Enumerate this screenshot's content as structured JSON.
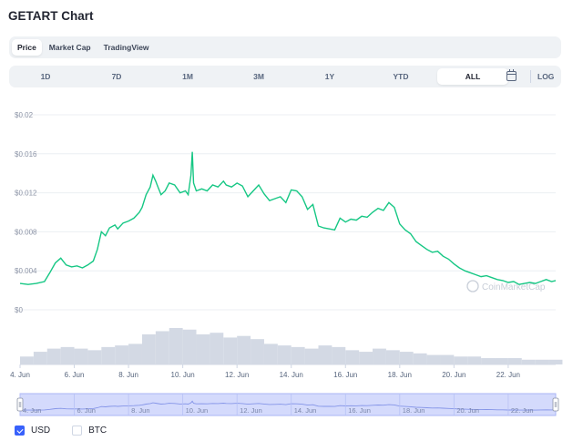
{
  "title": "GETART Chart",
  "type_tabs": [
    {
      "label": "Price",
      "active": true
    },
    {
      "label": "Market Cap",
      "active": false
    },
    {
      "label": "TradingView",
      "active": false
    }
  ],
  "ranges": [
    {
      "label": "1D",
      "active": false
    },
    {
      "label": "7D",
      "active": false
    },
    {
      "label": "1M",
      "active": false
    },
    {
      "label": "3M",
      "active": false
    },
    {
      "label": "1Y",
      "active": false
    },
    {
      "label": "YTD",
      "active": false
    },
    {
      "label": "ALL",
      "active": true
    }
  ],
  "log_label": "LOG",
  "calendar_icon": "calendar-icon",
  "watermark": "CoinMarketCap",
  "colors": {
    "line": "#16c784",
    "volume": "#cfd6e4",
    "navigator_fill": "#c5cdfb",
    "checkbox": "#3861fb"
  },
  "legend": [
    {
      "label": "USD",
      "checked": true
    },
    {
      "label": "BTC",
      "checked": false
    }
  ],
  "chart_data": {
    "type": "line",
    "title": "",
    "xlabel": "",
    "ylabel": "",
    "x_ticks": [
      "4. Jun",
      "6. Jun",
      "8. Jun",
      "10. Jun",
      "12. Jun",
      "14. Jun",
      "16. Jun",
      "18. Jun",
      "20. Jun",
      "22. Jun"
    ],
    "y_ticks": [
      "$0.02",
      "$0.016",
      "$0.012",
      "$0.008",
      "$0.004",
      "$0"
    ],
    "ylim": [
      0,
      0.02
    ],
    "xlim": [
      4,
      23.75
    ],
    "series": [
      {
        "x": [
          4,
          4.3,
          4.6,
          4.9,
          5.1,
          5.3,
          5.5,
          5.7,
          5.9,
          6.1,
          6.3,
          6.5,
          6.7,
          6.85,
          7.0,
          7.15,
          7.3,
          7.5,
          7.6,
          7.8,
          8.0,
          8.2,
          8.4,
          8.5,
          8.65,
          8.8,
          8.9,
          9.0,
          9.1,
          9.2,
          9.35,
          9.5,
          9.7,
          9.9,
          10.1,
          10.2,
          10.3,
          10.35,
          10.4,
          10.5,
          10.7,
          10.9,
          11.1,
          11.3,
          11.5,
          11.6,
          11.8,
          12.0,
          12.2,
          12.4,
          12.6,
          12.8,
          13.0,
          13.2,
          13.4,
          13.6,
          13.8,
          14.0,
          14.2,
          14.4,
          14.6,
          14.8,
          15.0,
          15.2,
          15.4,
          15.6,
          15.8,
          16.0,
          16.2,
          16.4,
          16.6,
          16.8,
          17.0,
          17.2,
          17.4,
          17.6,
          17.8,
          18.0,
          18.2,
          18.4,
          18.6,
          18.8,
          19.0,
          19.2,
          19.4,
          19.6,
          19.8,
          20.0,
          20.2,
          20.4,
          20.6,
          20.8,
          21.0,
          21.2,
          21.4,
          21.6,
          21.8,
          22.0,
          22.2,
          22.4,
          22.6,
          22.8,
          23.0,
          23.2,
          23.4,
          23.6,
          23.75
        ],
        "y": [
          0.0027,
          0.0026,
          0.0027,
          0.0029,
          0.0038,
          0.0048,
          0.0053,
          0.0046,
          0.0044,
          0.0045,
          0.0043,
          0.0046,
          0.005,
          0.0062,
          0.008,
          0.0076,
          0.0084,
          0.0087,
          0.0083,
          0.0089,
          0.0091,
          0.0094,
          0.01,
          0.0105,
          0.0118,
          0.0126,
          0.0138,
          0.0132,
          0.0125,
          0.0118,
          0.0122,
          0.013,
          0.0128,
          0.012,
          0.0122,
          0.0118,
          0.0138,
          0.0162,
          0.013,
          0.0122,
          0.0124,
          0.0122,
          0.0128,
          0.0126,
          0.0132,
          0.0128,
          0.0126,
          0.013,
          0.0127,
          0.0116,
          0.0122,
          0.0128,
          0.0119,
          0.0112,
          0.0114,
          0.0116,
          0.011,
          0.0123,
          0.0122,
          0.0116,
          0.0103,
          0.0108,
          0.0086,
          0.0084,
          0.0083,
          0.0082,
          0.0094,
          0.009,
          0.0093,
          0.0092,
          0.0096,
          0.0095,
          0.01,
          0.0104,
          0.0102,
          0.011,
          0.0105,
          0.0088,
          0.0082,
          0.0078,
          0.007,
          0.0066,
          0.0062,
          0.0059,
          0.006,
          0.0055,
          0.0052,
          0.0047,
          0.0043,
          0.004,
          0.0038,
          0.0036,
          0.0034,
          0.0035,
          0.0033,
          0.0031,
          0.003,
          0.0028,
          0.0029,
          0.0026,
          0.0027,
          0.0028,
          0.0027,
          0.0029,
          0.0031,
          0.0029,
          0.003
        ]
      }
    ],
    "volume": {
      "x": [
        4,
        4.5,
        5,
        5.5,
        6,
        6.5,
        7,
        7.5,
        8,
        8.5,
        9,
        9.5,
        10,
        10.5,
        11,
        11.5,
        12,
        12.5,
        13,
        13.5,
        14,
        14.5,
        15,
        15.5,
        16,
        16.5,
        17,
        17.5,
        18,
        18.5,
        19,
        19.5,
        20,
        20.5,
        21,
        21.5,
        22,
        22.5,
        23,
        23.5
      ],
      "y": [
        0.5,
        0.8,
        1.0,
        1.1,
        1.0,
        0.9,
        1.1,
        1.2,
        1.3,
        1.9,
        2.1,
        2.3,
        2.2,
        1.9,
        2.0,
        1.7,
        1.8,
        1.6,
        1.3,
        1.2,
        1.1,
        1.0,
        1.2,
        1.1,
        0.9,
        0.8,
        1.0,
        0.9,
        0.8,
        0.7,
        0.6,
        0.6,
        0.5,
        0.5,
        0.4,
        0.4,
        0.4,
        0.3,
        0.3,
        0.3
      ]
    },
    "grid": true,
    "legend": "bottom-left"
  }
}
